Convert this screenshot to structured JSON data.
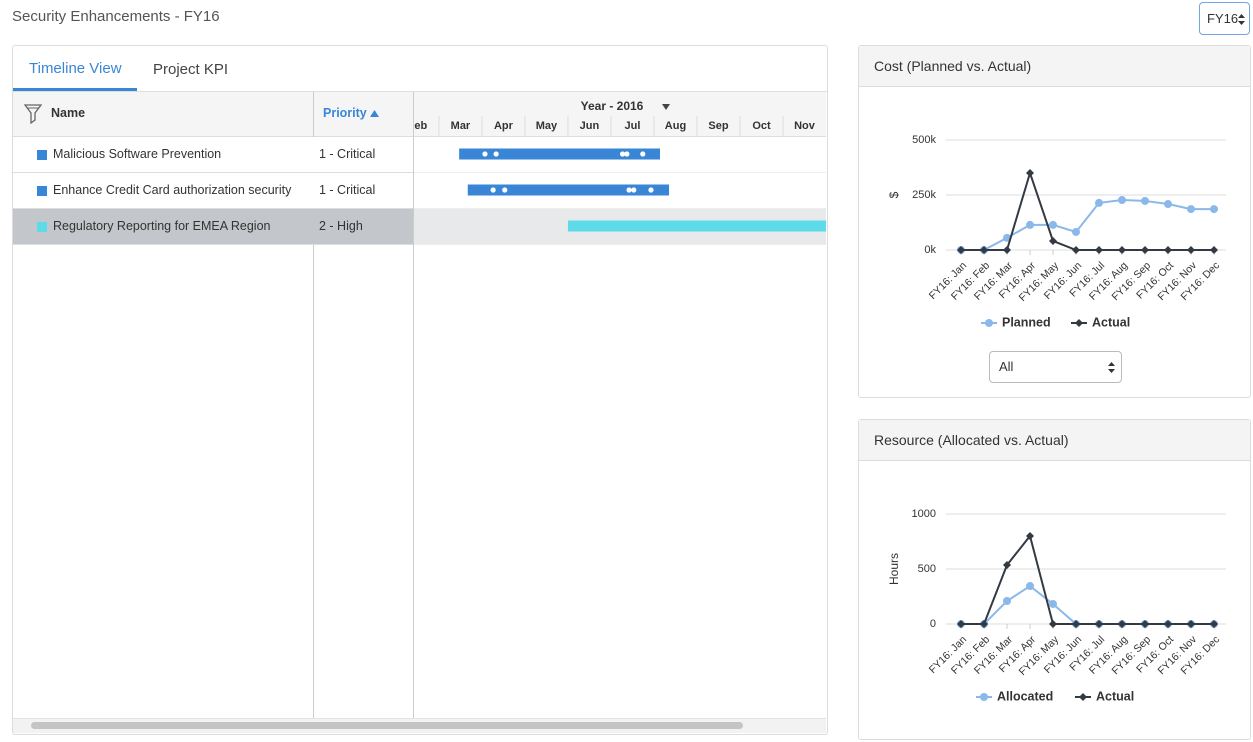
{
  "header": {
    "title": "Security Enhancements - FY16",
    "period_select": "FY16"
  },
  "tabs": [
    "Timeline View",
    "Project KPI"
  ],
  "table": {
    "columns": [
      "Name",
      "Priority"
    ],
    "rows": [
      [
        "Malicious Software Prevention",
        "1 - Critical"
      ],
      [
        "Enhance Credit Card authorization security",
        "1 - Critical"
      ],
      [
        "Regulatory Reporting for EMEA Region",
        "2 - High"
      ]
    ],
    "row_colors": [
      "#3a86d6",
      "#3a86d6",
      "#5ddbe8"
    ]
  },
  "timeline": {
    "title": "Year - 2016",
    "xlim": [
      2.42,
      12
    ],
    "xticks": [
      {
        "value": 2,
        "label": "Feb"
      },
      {
        "value": 3,
        "label": "Mar"
      },
      {
        "value": 4,
        "label": "Apr"
      },
      {
        "value": 5,
        "label": "May"
      },
      {
        "value": 6,
        "label": "Jun"
      },
      {
        "value": 7,
        "label": "Jul"
      },
      {
        "value": 8,
        "label": "Aug"
      },
      {
        "value": 9,
        "label": "Sep"
      },
      {
        "value": 10,
        "label": "Oct"
      },
      {
        "value": 11,
        "label": "Nov"
      }
    ],
    "bars": [
      {
        "start": 3.47,
        "end": 8.14,
        "milestones": [
          4.07,
          4.33,
          7.27,
          7.37,
          7.74
        ]
      },
      {
        "start": 3.67,
        "end": 8.35,
        "milestones": [
          4.26,
          4.53,
          7.42,
          7.53,
          7.93
        ]
      },
      {
        "start": 6.0,
        "end": 12.2,
        "milestones": []
      }
    ]
  },
  "chart_data": [
    {
      "type": "line",
      "title": "Cost (Planned vs. Actual)",
      "y_label": "$",
      "categories": [
        "FY16: Jan",
        "FY16: Feb",
        "FY16: Mar",
        "FY16: Apr",
        "FY16: May",
        "FY16: Jun",
        "FY16: Jul",
        "FY16: Aug",
        "FY16: Sep",
        "FY16: Oct",
        "FY16: Nov",
        "FY16: Dec"
      ],
      "series": [
        {
          "name": "Planned",
          "color": "#8ab8ea",
          "marker": "circle",
          "values": [
            0,
            0,
            55000,
            114000,
            114000,
            82000,
            214000,
            227000,
            223000,
            209000,
            186000,
            186000
          ]
        },
        {
          "name": "Actual",
          "color": "#333a44",
          "marker": "diamond",
          "values": [
            0,
            0,
            0,
            350000,
            41000,
            0,
            0,
            0,
            0,
            0,
            0,
            0
          ]
        }
      ],
      "ylim": [
        0,
        500000
      ],
      "yticks": [
        {
          "value": 0,
          "label": "0k"
        },
        {
          "value": 250000,
          "label": "250k"
        },
        {
          "value": 500000,
          "label": "500k"
        }
      ],
      "grid": true,
      "filter_select": "All"
    },
    {
      "type": "line",
      "title": "Resource (Allocated vs. Actual)",
      "y_label": "Hours",
      "categories": [
        "FY16: Jan",
        "FY16: Feb",
        "FY16: Mar",
        "FY16: Apr",
        "FY16: May",
        "FY16: Jun",
        "FY16: Jul",
        "FY16: Aug",
        "FY16: Sep",
        "FY16: Oct",
        "FY16: Nov",
        "FY16: Dec"
      ],
      "series": [
        {
          "name": "Allocated",
          "color": "#8ab8ea",
          "marker": "circle",
          "values": [
            0,
            0,
            209,
            345,
            182,
            0,
            0,
            0,
            0,
            0,
            0,
            0
          ]
        },
        {
          "name": "Actual",
          "color": "#333a44",
          "marker": "diamond",
          "values": [
            0,
            0,
            536,
            800,
            0,
            0,
            0,
            0,
            0,
            0,
            0,
            0
          ]
        }
      ],
      "ylim": [
        0,
        1000
      ],
      "yticks": [
        0,
        500,
        1000
      ],
      "grid": true
    }
  ]
}
